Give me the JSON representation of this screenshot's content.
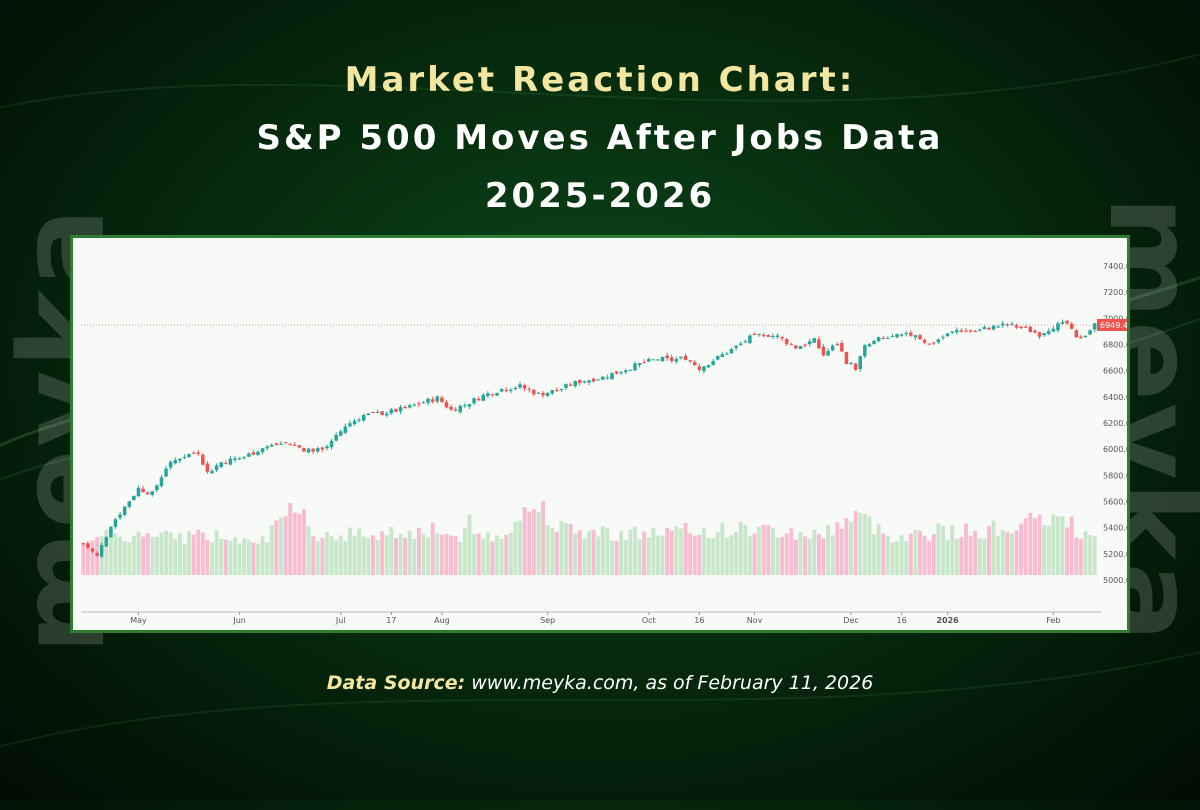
{
  "header": {
    "title_line1": "Market Reaction Chart:",
    "title_line2": "S&P 500 Moves After Jobs Data",
    "title_line3": "2025-2026"
  },
  "watermark": {
    "text": "meyka"
  },
  "footer": {
    "source_label": "Data Source:",
    "source_text": "www.meyka.com, as of February 11, 2026"
  },
  "colors": {
    "up": "#26a69a",
    "down": "#ef5350",
    "vol_up": "#c8e6c9",
    "vol_down": "#f8bbd0",
    "title_accent": "#f3e6a0",
    "card_border": "#2e7d32"
  },
  "chart_data": {
    "type": "candlestick",
    "title": "",
    "xlabel": "",
    "ylabel": "",
    "ylim": [
      4900,
      7500
    ],
    "yticks": [
      "7400.0",
      "7200.0",
      "7000.0",
      "6800.0",
      "6600.0",
      "6400.0",
      "6200.0",
      "6000.0",
      "5800.0",
      "5600.0",
      "5400.0",
      "5200.0",
      "5000.0"
    ],
    "x_ticks": [
      {
        "label": "May",
        "day": 12
      },
      {
        "label": "Jun",
        "day": 34
      },
      {
        "label": "Jul",
        "day": 56
      },
      {
        "label": "17",
        "day": 67
      },
      {
        "label": "Aug",
        "day": 78
      },
      {
        "label": "Sep",
        "day": 101
      },
      {
        "label": "Oct",
        "day": 123
      },
      {
        "label": "16",
        "day": 134
      },
      {
        "label": "Nov",
        "day": 146
      },
      {
        "label": "Dec",
        "day": 167
      },
      {
        "label": "16",
        "day": 178
      },
      {
        "label": "2026",
        "day": 188
      },
      {
        "label": "Feb",
        "day": 211
      }
    ],
    "last_price": "6949.4",
    "last_price_value": 6949.4,
    "trading_days": 221,
    "close_path": [
      [
        0,
        5280
      ],
      [
        3,
        5180
      ],
      [
        6,
        5420
      ],
      [
        9,
        5560
      ],
      [
        12,
        5700
      ],
      [
        15,
        5660
      ],
      [
        18,
        5860
      ],
      [
        21,
        5940
      ],
      [
        25,
        5980
      ],
      [
        27,
        5820
      ],
      [
        30,
        5900
      ],
      [
        35,
        5940
      ],
      [
        39,
        6010
      ],
      [
        44,
        6050
      ],
      [
        48,
        6000
      ],
      [
        51,
        5990
      ],
      [
        54,
        6050
      ],
      [
        57,
        6180
      ],
      [
        61,
        6260
      ],
      [
        66,
        6280
      ],
      [
        70,
        6310
      ],
      [
        74,
        6360
      ],
      [
        77,
        6390
      ],
      [
        80,
        6300
      ],
      [
        83,
        6340
      ],
      [
        87,
        6410
      ],
      [
        91,
        6460
      ],
      [
        95,
        6480
      ],
      [
        99,
        6420
      ],
      [
        103,
        6450
      ],
      [
        108,
        6520
      ],
      [
        113,
        6550
      ],
      [
        117,
        6600
      ],
      [
        121,
        6650
      ],
      [
        125,
        6690
      ],
      [
        128,
        6680
      ],
      [
        131,
        6700
      ],
      [
        134,
        6620
      ],
      [
        137,
        6680
      ],
      [
        141,
        6760
      ],
      [
        145,
        6850
      ],
      [
        148,
        6880
      ],
      [
        151,
        6860
      ],
      [
        155,
        6780
      ],
      [
        159,
        6830
      ],
      [
        161,
        6720
      ],
      [
        164,
        6810
      ],
      [
        166,
        6670
      ],
      [
        168,
        6620
      ],
      [
        170,
        6780
      ],
      [
        173,
        6840
      ],
      [
        177,
        6860
      ],
      [
        181,
        6880
      ],
      [
        184,
        6800
      ],
      [
        187,
        6860
      ],
      [
        190,
        6910
      ],
      [
        194,
        6900
      ],
      [
        197,
        6930
      ],
      [
        201,
        6950
      ],
      [
        205,
        6920
      ],
      [
        208,
        6880
      ],
      [
        211,
        6940
      ],
      [
        214,
        6960
      ],
      [
        216,
        6840
      ],
      [
        218,
        6880
      ],
      [
        220,
        6949.4
      ]
    ],
    "volume_range": [
      0,
      1
    ],
    "volume_profile": [
      [
        0,
        0.34
      ],
      [
        10,
        0.36
      ],
      [
        20,
        0.35
      ],
      [
        30,
        0.36
      ],
      [
        40,
        0.35
      ],
      [
        45,
        0.55
      ],
      [
        50,
        0.38
      ],
      [
        60,
        0.37
      ],
      [
        70,
        0.4
      ],
      [
        80,
        0.36
      ],
      [
        90,
        0.36
      ],
      [
        99,
        0.65
      ],
      [
        105,
        0.4
      ],
      [
        120,
        0.38
      ],
      [
        135,
        0.4
      ],
      [
        145,
        0.42
      ],
      [
        160,
        0.36
      ],
      [
        168,
        0.55
      ],
      [
        175,
        0.36
      ],
      [
        185,
        0.38
      ],
      [
        195,
        0.4
      ],
      [
        205,
        0.46
      ],
      [
        210,
        0.52
      ],
      [
        214,
        0.48
      ],
      [
        220,
        0.3
      ]
    ]
  }
}
